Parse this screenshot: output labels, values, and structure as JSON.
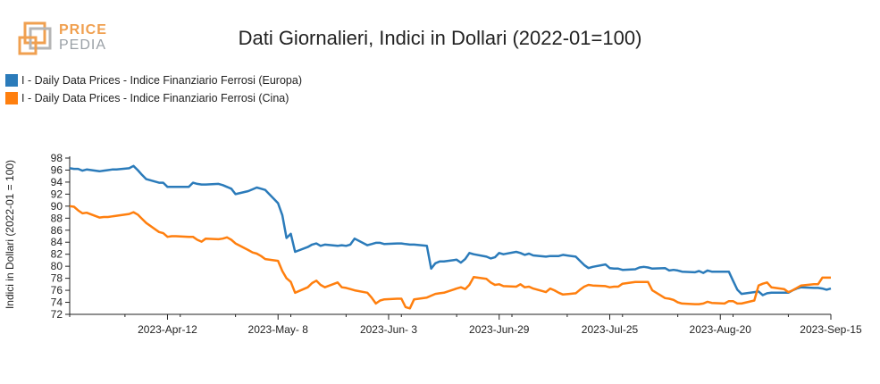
{
  "logo": {
    "top": "PRICE",
    "bottom": "PEDIA"
  },
  "colors": {
    "europa": "#2b7bba",
    "cina": "#ff7f0e",
    "logo_orange": "#f0a050",
    "logo_grey": "#b5b5b5"
  },
  "chart_data": {
    "type": "line",
    "title": "Dati Giornalieri, Indici in Dollari (2022-01=100)",
    "ylabel": "Indici in Dollari (2022-01 = 100)",
    "xlabel": "",
    "ylim": [
      72,
      98
    ],
    "yticks": [
      72,
      74,
      76,
      78,
      80,
      82,
      84,
      86,
      88,
      90,
      92,
      94,
      96,
      98
    ],
    "xlim": [
      "2023-03-20",
      "2023-09-15"
    ],
    "xticks": [
      "2023-04-12",
      "2023-05-08",
      "2023-06-03",
      "2023-06-29",
      "2023-07-25",
      "2023-08-20",
      "2023-09-15"
    ],
    "xtick_labels": [
      "2023-Apr-12",
      "2023-May- 8",
      "2023-Jun- 3",
      "2023-Jun-29",
      "2023-Jul-25",
      "2023-Aug-20",
      "2023-Sep-15"
    ],
    "grid": false,
    "legend_position": "top-left",
    "series": [
      {
        "name": "I - Daily Data Prices - Indice Finanziario Ferrosi (Europa)",
        "color": "#2b7bba",
        "points": [
          [
            "2023-03-20",
            96.3
          ],
          [
            "2023-03-21",
            96.2
          ],
          [
            "2023-03-22",
            96.2
          ],
          [
            "2023-03-23",
            95.9
          ],
          [
            "2023-03-24",
            96.1
          ],
          [
            "2023-03-27",
            95.8
          ],
          [
            "2023-03-28",
            95.9
          ],
          [
            "2023-03-29",
            96.0
          ],
          [
            "2023-03-30",
            96.1
          ],
          [
            "2023-03-31",
            96.1
          ],
          [
            "2023-04-03",
            96.3
          ],
          [
            "2023-04-04",
            96.7
          ],
          [
            "2023-04-05",
            96.0
          ],
          [
            "2023-04-06",
            95.2
          ],
          [
            "2023-04-07",
            94.5
          ],
          [
            "2023-04-10",
            93.9
          ],
          [
            "2023-04-11",
            93.9
          ],
          [
            "2023-04-12",
            93.2
          ],
          [
            "2023-04-13",
            93.2
          ],
          [
            "2023-04-14",
            93.2
          ],
          [
            "2023-04-17",
            93.2
          ],
          [
            "2023-04-18",
            93.9
          ],
          [
            "2023-04-19",
            93.7
          ],
          [
            "2023-04-20",
            93.6
          ],
          [
            "2023-04-21",
            93.6
          ],
          [
            "2023-04-24",
            93.7
          ],
          [
            "2023-04-25",
            93.5
          ],
          [
            "2023-04-26",
            93.2
          ],
          [
            "2023-04-27",
            92.9
          ],
          [
            "2023-04-28",
            92.0
          ],
          [
            "2023-05-01",
            92.5
          ],
          [
            "2023-05-02",
            92.8
          ],
          [
            "2023-05-03",
            93.1
          ],
          [
            "2023-05-04",
            92.9
          ],
          [
            "2023-05-05",
            92.7
          ],
          [
            "2023-05-08",
            90.5
          ],
          [
            "2023-05-09",
            88.5
          ],
          [
            "2023-05-10",
            84.7
          ],
          [
            "2023-05-11",
            85.4
          ],
          [
            "2023-05-12",
            82.4
          ],
          [
            "2023-05-15",
            83.2
          ],
          [
            "2023-05-16",
            83.6
          ],
          [
            "2023-05-17",
            83.8
          ],
          [
            "2023-05-18",
            83.4
          ],
          [
            "2023-05-19",
            83.6
          ],
          [
            "2023-05-22",
            83.4
          ],
          [
            "2023-05-23",
            83.5
          ],
          [
            "2023-05-24",
            83.4
          ],
          [
            "2023-05-25",
            83.6
          ],
          [
            "2023-05-26",
            84.6
          ],
          [
            "2023-05-29",
            83.5
          ],
          [
            "2023-05-30",
            83.7
          ],
          [
            "2023-05-31",
            83.9
          ],
          [
            "2023-06-01",
            83.9
          ],
          [
            "2023-06-02",
            83.7
          ],
          [
            "2023-06-05",
            83.8
          ],
          [
            "2023-06-06",
            83.8
          ],
          [
            "2023-06-07",
            83.7
          ],
          [
            "2023-06-08",
            83.6
          ],
          [
            "2023-06-09",
            83.6
          ],
          [
            "2023-06-12",
            83.4
          ],
          [
            "2023-06-13",
            79.6
          ],
          [
            "2023-06-14",
            80.5
          ],
          [
            "2023-06-15",
            80.8
          ],
          [
            "2023-06-16",
            80.8
          ],
          [
            "2023-06-19",
            81.1
          ],
          [
            "2023-06-20",
            80.6
          ],
          [
            "2023-06-21",
            81.2
          ],
          [
            "2023-06-22",
            82.2
          ],
          [
            "2023-06-23",
            82.0
          ],
          [
            "2023-06-26",
            81.6
          ],
          [
            "2023-06-27",
            81.3
          ],
          [
            "2023-06-28",
            81.5
          ],
          [
            "2023-06-29",
            82.2
          ],
          [
            "2023-06-30",
            82.0
          ],
          [
            "2023-07-03",
            82.4
          ],
          [
            "2023-07-04",
            82.2
          ],
          [
            "2023-07-05",
            81.9
          ],
          [
            "2023-07-06",
            82.1
          ],
          [
            "2023-07-07",
            81.8
          ],
          [
            "2023-07-10",
            81.6
          ],
          [
            "2023-07-11",
            81.7
          ],
          [
            "2023-07-12",
            81.7
          ],
          [
            "2023-07-13",
            81.7
          ],
          [
            "2023-07-14",
            81.9
          ],
          [
            "2023-07-17",
            81.6
          ],
          [
            "2023-07-18",
            80.9
          ],
          [
            "2023-07-19",
            80.2
          ],
          [
            "2023-07-20",
            79.7
          ],
          [
            "2023-07-21",
            79.9
          ],
          [
            "2023-07-24",
            80.3
          ],
          [
            "2023-07-25",
            79.7
          ],
          [
            "2023-07-26",
            79.6
          ],
          [
            "2023-07-27",
            79.6
          ],
          [
            "2023-07-28",
            79.4
          ],
          [
            "2023-07-31",
            79.5
          ],
          [
            "2023-08-01",
            79.8
          ],
          [
            "2023-08-02",
            79.9
          ],
          [
            "2023-08-03",
            79.8
          ],
          [
            "2023-08-04",
            79.6
          ],
          [
            "2023-08-07",
            79.7
          ],
          [
            "2023-08-08",
            79.3
          ],
          [
            "2023-08-09",
            79.4
          ],
          [
            "2023-08-10",
            79.3
          ],
          [
            "2023-08-11",
            79.1
          ],
          [
            "2023-08-14",
            79.0
          ],
          [
            "2023-08-15",
            79.2
          ],
          [
            "2023-08-16",
            78.9
          ],
          [
            "2023-08-17",
            79.3
          ],
          [
            "2023-08-18",
            79.1
          ],
          [
            "2023-08-21",
            79.1
          ],
          [
            "2023-08-22",
            79.1
          ],
          [
            "2023-08-23",
            77.6
          ],
          [
            "2023-08-24",
            76.1
          ],
          [
            "2023-08-25",
            75.4
          ],
          [
            "2023-08-28",
            75.7
          ],
          [
            "2023-08-29",
            75.8
          ],
          [
            "2023-08-30",
            75.2
          ],
          [
            "2023-08-31",
            75.5
          ],
          [
            "2023-09-01",
            75.6
          ],
          [
            "2023-09-04",
            75.6
          ],
          [
            "2023-09-05",
            75.6
          ],
          [
            "2023-09-06",
            76.0
          ],
          [
            "2023-09-07",
            76.3
          ],
          [
            "2023-09-08",
            76.5
          ],
          [
            "2023-09-11",
            76.4
          ],
          [
            "2023-09-12",
            76.4
          ],
          [
            "2023-09-13",
            76.3
          ],
          [
            "2023-09-14",
            76.1
          ],
          [
            "2023-09-15",
            76.3
          ]
        ]
      },
      {
        "name": "I - Daily Data Prices - Indice Finanziario Ferrosi (Cina)",
        "color": "#ff7f0e",
        "points": [
          [
            "2023-03-20",
            90.0
          ],
          [
            "2023-03-21",
            89.9
          ],
          [
            "2023-03-22",
            89.3
          ],
          [
            "2023-03-23",
            88.8
          ],
          [
            "2023-03-24",
            88.9
          ],
          [
            "2023-03-27",
            88.1
          ],
          [
            "2023-03-28",
            88.2
          ],
          [
            "2023-03-29",
            88.2
          ],
          [
            "2023-03-30",
            88.3
          ],
          [
            "2023-03-31",
            88.4
          ],
          [
            "2023-04-03",
            88.7
          ],
          [
            "2023-04-04",
            89.0
          ],
          [
            "2023-04-05",
            88.6
          ],
          [
            "2023-04-06",
            87.9
          ],
          [
            "2023-04-07",
            87.2
          ],
          [
            "2023-04-10",
            85.7
          ],
          [
            "2023-04-11",
            85.5
          ],
          [
            "2023-04-12",
            84.9
          ],
          [
            "2023-04-13",
            85.0
          ],
          [
            "2023-04-14",
            85.0
          ],
          [
            "2023-04-17",
            84.9
          ],
          [
            "2023-04-18",
            84.9
          ],
          [
            "2023-04-19",
            84.4
          ],
          [
            "2023-04-20",
            84.1
          ],
          [
            "2023-04-21",
            84.6
          ],
          [
            "2023-04-24",
            84.5
          ],
          [
            "2023-04-25",
            84.6
          ],
          [
            "2023-04-26",
            84.8
          ],
          [
            "2023-04-27",
            84.4
          ],
          [
            "2023-04-28",
            83.8
          ],
          [
            "2023-05-01",
            82.7
          ],
          [
            "2023-05-02",
            82.3
          ],
          [
            "2023-05-03",
            82.1
          ],
          [
            "2023-05-04",
            81.7
          ],
          [
            "2023-05-05",
            81.2
          ],
          [
            "2023-05-08",
            80.9
          ],
          [
            "2023-05-09",
            79.2
          ],
          [
            "2023-05-10",
            78.0
          ],
          [
            "2023-05-11",
            77.4
          ],
          [
            "2023-05-12",
            75.6
          ],
          [
            "2023-05-15",
            76.5
          ],
          [
            "2023-05-16",
            77.2
          ],
          [
            "2023-05-17",
            77.6
          ],
          [
            "2023-05-18",
            76.9
          ],
          [
            "2023-05-19",
            76.5
          ],
          [
            "2023-05-22",
            77.3
          ],
          [
            "2023-05-23",
            76.5
          ],
          [
            "2023-05-24",
            76.4
          ],
          [
            "2023-05-25",
            76.2
          ],
          [
            "2023-05-26",
            76.0
          ],
          [
            "2023-05-29",
            75.6
          ],
          [
            "2023-05-30",
            74.8
          ],
          [
            "2023-05-31",
            73.8
          ],
          [
            "2023-06-01",
            74.3
          ],
          [
            "2023-06-02",
            74.5
          ],
          [
            "2023-06-05",
            74.6
          ],
          [
            "2023-06-06",
            74.6
          ],
          [
            "2023-06-07",
            73.2
          ],
          [
            "2023-06-08",
            73.0
          ],
          [
            "2023-06-09",
            74.5
          ],
          [
            "2023-06-12",
            74.8
          ],
          [
            "2023-06-13",
            75.1
          ],
          [
            "2023-06-14",
            75.4
          ],
          [
            "2023-06-15",
            75.5
          ],
          [
            "2023-06-16",
            75.6
          ],
          [
            "2023-06-19",
            76.3
          ],
          [
            "2023-06-20",
            76.5
          ],
          [
            "2023-06-21",
            76.2
          ],
          [
            "2023-06-22",
            76.9
          ],
          [
            "2023-06-23",
            78.2
          ],
          [
            "2023-06-26",
            77.9
          ],
          [
            "2023-06-27",
            77.3
          ],
          [
            "2023-06-28",
            76.9
          ],
          [
            "2023-06-29",
            77.0
          ],
          [
            "2023-06-30",
            76.7
          ],
          [
            "2023-07-03",
            76.6
          ],
          [
            "2023-07-04",
            77.0
          ],
          [
            "2023-07-05",
            76.5
          ],
          [
            "2023-07-06",
            76.6
          ],
          [
            "2023-07-07",
            76.3
          ],
          [
            "2023-07-10",
            75.7
          ],
          [
            "2023-07-11",
            76.3
          ],
          [
            "2023-07-12",
            76.0
          ],
          [
            "2023-07-13",
            75.6
          ],
          [
            "2023-07-14",
            75.3
          ],
          [
            "2023-07-17",
            75.5
          ],
          [
            "2023-07-18",
            76.1
          ],
          [
            "2023-07-19",
            76.6
          ],
          [
            "2023-07-20",
            76.9
          ],
          [
            "2023-07-21",
            76.8
          ],
          [
            "2023-07-24",
            76.7
          ],
          [
            "2023-07-25",
            76.5
          ],
          [
            "2023-07-26",
            76.6
          ],
          [
            "2023-07-27",
            76.6
          ],
          [
            "2023-07-28",
            77.1
          ],
          [
            "2023-07-31",
            77.4
          ],
          [
            "2023-08-01",
            77.4
          ],
          [
            "2023-08-02",
            77.4
          ],
          [
            "2023-08-03",
            77.4
          ],
          [
            "2023-08-04",
            76.0
          ],
          [
            "2023-08-07",
            74.7
          ],
          [
            "2023-08-08",
            74.6
          ],
          [
            "2023-08-09",
            74.4
          ],
          [
            "2023-08-10",
            74.0
          ],
          [
            "2023-08-11",
            73.8
          ],
          [
            "2023-08-14",
            73.7
          ],
          [
            "2023-08-15",
            73.7
          ],
          [
            "2023-08-16",
            73.8
          ],
          [
            "2023-08-17",
            74.1
          ],
          [
            "2023-08-18",
            73.9
          ],
          [
            "2023-08-21",
            73.8
          ],
          [
            "2023-08-22",
            74.2
          ],
          [
            "2023-08-23",
            74.2
          ],
          [
            "2023-08-24",
            73.8
          ],
          [
            "2023-08-25",
            73.8
          ],
          [
            "2023-08-28",
            74.3
          ],
          [
            "2023-08-29",
            76.8
          ],
          [
            "2023-08-30",
            77.1
          ],
          [
            "2023-08-31",
            77.3
          ],
          [
            "2023-09-01",
            76.5
          ],
          [
            "2023-09-04",
            76.2
          ],
          [
            "2023-09-05",
            75.7
          ],
          [
            "2023-09-06",
            76.0
          ],
          [
            "2023-09-07",
            76.4
          ],
          [
            "2023-09-08",
            76.8
          ],
          [
            "2023-09-11",
            77.0
          ],
          [
            "2023-09-12",
            77.0
          ],
          [
            "2023-09-13",
            78.1
          ],
          [
            "2023-09-14",
            78.1
          ],
          [
            "2023-09-15",
            78.1
          ]
        ]
      }
    ]
  }
}
